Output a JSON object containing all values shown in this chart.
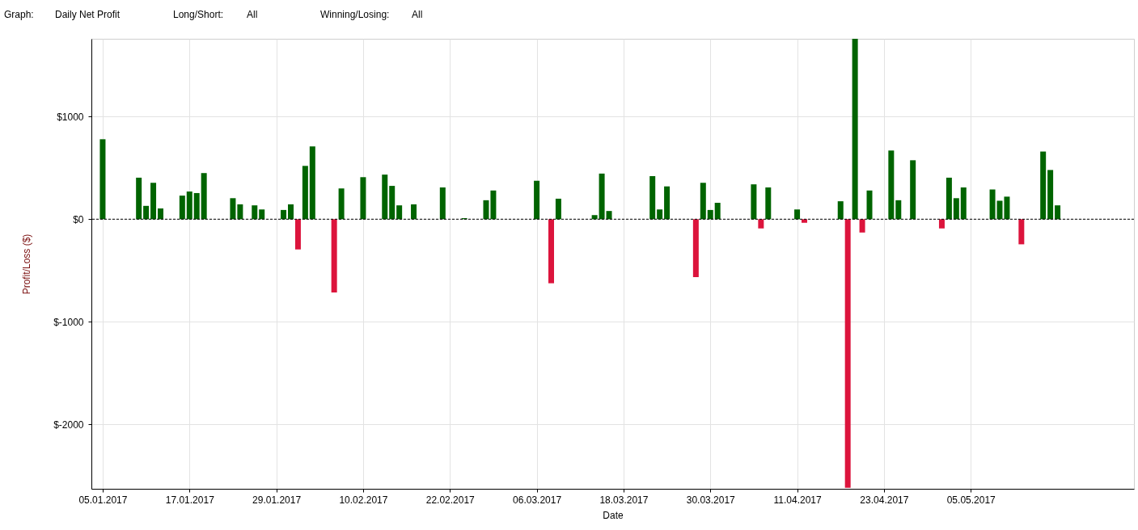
{
  "chart_data": {
    "type": "bar",
    "annotations": [
      "Graph:",
      "Daily Net Profit",
      "Long/Short:",
      "All",
      "Winning/Losing:",
      "All"
    ],
    "xlabel": "Date",
    "ylabel": "Profit/Loss ($)",
    "x": [
      "2017-01-05",
      "2017-01-10",
      "2017-01-11",
      "2017-01-12",
      "2017-01-13",
      "2017-01-16",
      "2017-01-17",
      "2017-01-18",
      "2017-01-19",
      "2017-01-23",
      "2017-01-24",
      "2017-01-26",
      "2017-01-27",
      "2017-01-30",
      "2017-01-31",
      "2017-02-01",
      "2017-02-02",
      "2017-02-03",
      "2017-02-06",
      "2017-02-07",
      "2017-02-10",
      "2017-02-13",
      "2017-02-14",
      "2017-02-15",
      "2017-02-17",
      "2017-02-21",
      "2017-02-24",
      "2017-02-27",
      "2017-02-28",
      "2017-03-06",
      "2017-03-08",
      "2017-03-09",
      "2017-03-14",
      "2017-03-15",
      "2017-03-16",
      "2017-03-22",
      "2017-03-23",
      "2017-03-24",
      "2017-03-28",
      "2017-03-29",
      "2017-03-30",
      "2017-03-31",
      "2017-04-05",
      "2017-04-06",
      "2017-04-07",
      "2017-04-11",
      "2017-04-12",
      "2017-04-17",
      "2017-04-18",
      "2017-04-19",
      "2017-04-20",
      "2017-04-21",
      "2017-04-24",
      "2017-04-25",
      "2017-04-27",
      "2017-05-01",
      "2017-05-02",
      "2017-05-03",
      "2017-05-04",
      "2017-05-08",
      "2017-05-09",
      "2017-05-10",
      "2017-05-12",
      "2017-05-15",
      "2017-05-16",
      "2017-05-17"
    ],
    "values": [
      780,
      405,
      130,
      355,
      105,
      230,
      270,
      255,
      450,
      205,
      145,
      135,
      95,
      90,
      145,
      -295,
      520,
      710,
      -715,
      300,
      410,
      435,
      325,
      135,
      145,
      310,
      10,
      185,
      280,
      375,
      -625,
      200,
      40,
      445,
      80,
      420,
      95,
      320,
      -565,
      355,
      90,
      160,
      340,
      -90,
      310,
      95,
      -35,
      175,
      -2620,
      1760,
      -130,
      280,
      670,
      185,
      575,
      -90,
      405,
      205,
      310,
      290,
      180,
      220,
      -245,
      660,
      480,
      135
    ],
    "colors": [
      "#006400",
      "#006400",
      "#006400",
      "#006400",
      "#006400",
      "#006400",
      "#006400",
      "#006400",
      "#006400",
      "#006400",
      "#006400",
      "#006400",
      "#006400",
      "#006400",
      "#006400",
      "#dc143c",
      "#006400",
      "#006400",
      "#dc143c",
      "#006400",
      "#006400",
      "#006400",
      "#006400",
      "#006400",
      "#006400",
      "#006400",
      "#006400",
      "#006400",
      "#006400",
      "#006400",
      "#dc143c",
      "#006400",
      "#006400",
      "#006400",
      "#006400",
      "#006400",
      "#006400",
      "#006400",
      "#dc143c",
      "#006400",
      "#006400",
      "#006400",
      "#006400",
      "#dc143c",
      "#006400",
      "#006400",
      "#dc143c",
      "#006400",
      "#dc143c",
      "#006400",
      "#dc143c",
      "#006400",
      "#006400",
      "#006400",
      "#006400",
      "#dc143c",
      "#006400",
      "#006400",
      "#006400",
      "#006400",
      "#006400",
      "#006400",
      "#dc143c",
      "#006400",
      "#006400",
      "#006400"
    ],
    "xlim": [
      "2017-01-04",
      "2017-05-27"
    ],
    "xticks": [
      {
        "value": "2017-01-05",
        "label": "05.01.2017"
      },
      {
        "value": "2017-01-17",
        "label": "17.01.2017"
      },
      {
        "value": "2017-01-29",
        "label": "29.01.2017"
      },
      {
        "value": "2017-02-10",
        "label": "10.02.2017"
      },
      {
        "value": "2017-02-22",
        "label": "22.02.2017"
      },
      {
        "value": "2017-03-06",
        "label": "06.03.2017"
      },
      {
        "value": "2017-03-18",
        "label": "18.03.2017"
      },
      {
        "value": "2017-03-30",
        "label": "30.03.2017"
      },
      {
        "value": "2017-04-11",
        "label": "11.04.2017"
      },
      {
        "value": "2017-04-23",
        "label": "23.04.2017"
      },
      {
        "value": "2017-05-05",
        "label": "05.05.2017"
      }
    ],
    "ylim": [
      -2630,
      1760
    ],
    "yticks": [
      {
        "value": 1000,
        "label": "$1000"
      },
      {
        "value": 0,
        "label": "$0"
      },
      {
        "value": -1000,
        "label": "$-1000"
      },
      {
        "value": -2000,
        "label": "$-2000"
      }
    ],
    "grid": true,
    "ref_lines": [
      {
        "axis": "y",
        "value": 0,
        "color": "#000000",
        "line_style": "dashed"
      }
    ]
  }
}
